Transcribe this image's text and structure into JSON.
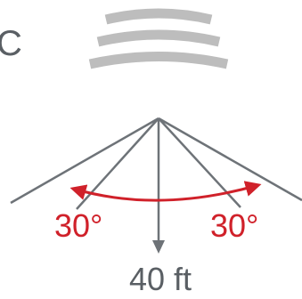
{
  "header": {
    "partial_letter": "C"
  },
  "coverage": {
    "left_angle_label": "30°",
    "right_angle_label": "30°",
    "range_label": "40 ft"
  },
  "icons": {
    "signal": "signal-waves-icon"
  },
  "colors": {
    "structure": "#6e7378",
    "waves": "#bdbdbd",
    "angle": "#d0212a",
    "text": "#5a5f64"
  }
}
